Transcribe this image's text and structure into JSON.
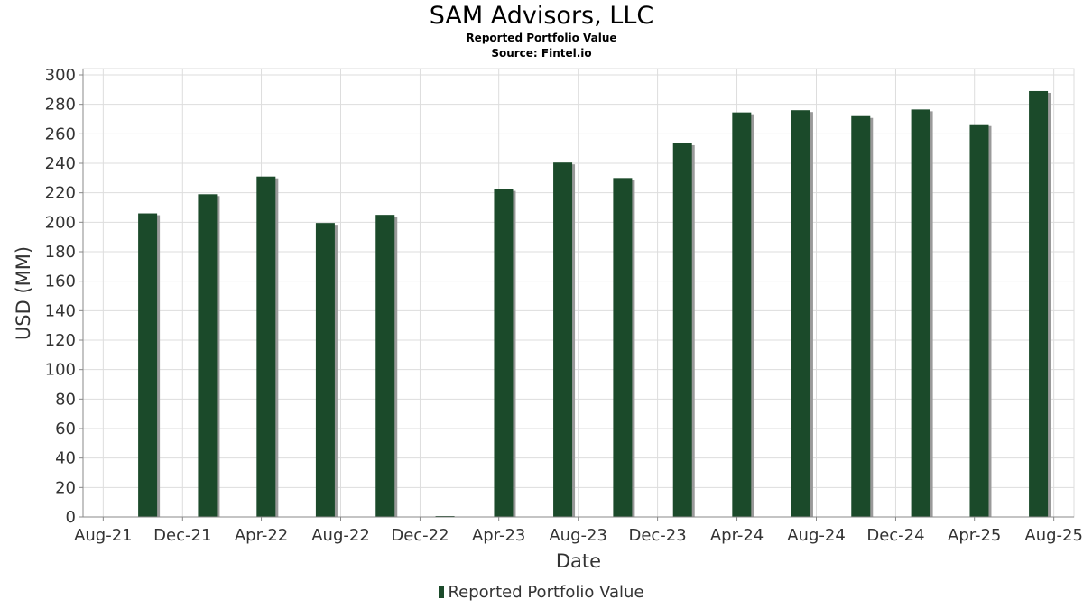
{
  "title": "SAM Advisors, LLC",
  "subtitle": "Reported Portfolio Value",
  "source": "Source: Fintel.io",
  "colors": {
    "bar": "#1b4a2a",
    "bar_shadow": "#9a9a9a",
    "grid": "#dddddd",
    "axis": "#888888"
  },
  "chart_data": {
    "type": "bar",
    "xlabel": "Date",
    "ylabel": "USD (MM)",
    "ylim": [
      0,
      300
    ],
    "y_ticks": [
      0,
      20,
      40,
      60,
      80,
      100,
      120,
      140,
      160,
      180,
      200,
      220,
      240,
      260,
      280,
      300
    ],
    "x_tick_labels": [
      "Aug-21",
      "Dec-21",
      "Apr-22",
      "Aug-22",
      "Dec-22",
      "Apr-23",
      "Aug-23",
      "Dec-23",
      "Apr-24",
      "Aug-24",
      "Dec-24",
      "Apr-25",
      "Aug-25"
    ],
    "grid": true,
    "legend_position": "bottom-center",
    "series": [
      {
        "name": "Reported Portfolio Value",
        "points": [
          {
            "date": "2021-09-30",
            "value": 206
          },
          {
            "date": "2021-12-31",
            "value": 219
          },
          {
            "date": "2022-03-31",
            "value": 231
          },
          {
            "date": "2022-06-30",
            "value": 199.5
          },
          {
            "date": "2022-09-30",
            "value": 205
          },
          {
            "date": "2022-12-31",
            "value": 0.5
          },
          {
            "date": "2023-03-31",
            "value": 222.5
          },
          {
            "date": "2023-06-30",
            "value": 240.5
          },
          {
            "date": "2023-09-30",
            "value": 230
          },
          {
            "date": "2023-12-31",
            "value": 253.5
          },
          {
            "date": "2024-03-31",
            "value": 274.5
          },
          {
            "date": "2024-06-30",
            "value": 276
          },
          {
            "date": "2024-09-30",
            "value": 272
          },
          {
            "date": "2024-12-31",
            "value": 276.5
          },
          {
            "date": "2025-03-31",
            "value": 266.5
          },
          {
            "date": "2025-06-30",
            "value": 289
          }
        ]
      }
    ]
  }
}
